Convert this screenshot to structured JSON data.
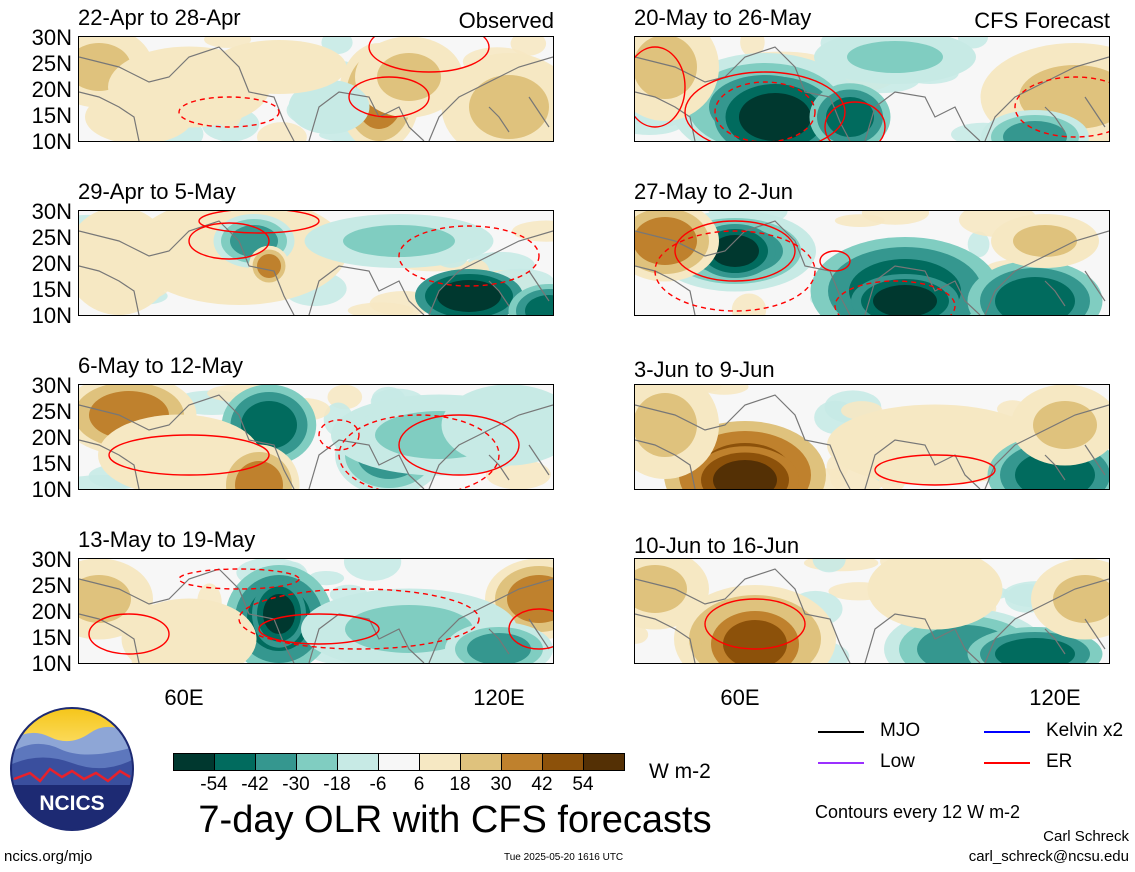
{
  "panels": [
    {
      "title": "22-Apr to 28-Apr",
      "tag": "Observed"
    },
    {
      "title": "20-May to 26-May",
      "tag": "CFS Forecast"
    },
    {
      "title": "29-Apr to 5-May",
      "tag": ""
    },
    {
      "title": "27-May to 2-Jun",
      "tag": ""
    },
    {
      "title": "6-May to 12-May",
      "tag": ""
    },
    {
      "title": "3-Jun to 9-Jun",
      "tag": ""
    },
    {
      "title": "13-May to 19-May",
      "tag": ""
    },
    {
      "title": "10-Jun to 16-Jun",
      "tag": ""
    }
  ],
  "lat_labels": [
    "30N",
    "25N",
    "20N",
    "15N",
    "10N"
  ],
  "lon_labels": [
    "60E",
    "120E"
  ],
  "colorbar": {
    "ticks": [
      "-54",
      "-42",
      "-30",
      "-18",
      "-6",
      "6",
      "18",
      "30",
      "42",
      "54"
    ],
    "colors": [
      "#00382f",
      "#016b5e",
      "#35978f",
      "#80cdc1",
      "#c7eae5",
      "#f7f7f7",
      "#f6e8c3",
      "#dfc27d",
      "#bf812d",
      "#8c510a",
      "#543005"
    ],
    "units": "W m-2"
  },
  "title": "7-day OLR with CFS forecasts",
  "legend": [
    {
      "label": "MJO",
      "color": "#000000"
    },
    {
      "label": "Kelvin x2",
      "color": "#0000ff"
    },
    {
      "label": "Low",
      "color": "#9b30ff"
    },
    {
      "label": "ER",
      "color": "#ff0000"
    }
  ],
  "contour_note": "Contours every 12 W m-2",
  "author": "Carl Schreck",
  "email": "carl_schreck@ncsu.edu",
  "url": "ncics.org/mjo",
  "timestamp": "Tue 2025-05-20 1616 UTC",
  "logo_text": "NCICS"
}
